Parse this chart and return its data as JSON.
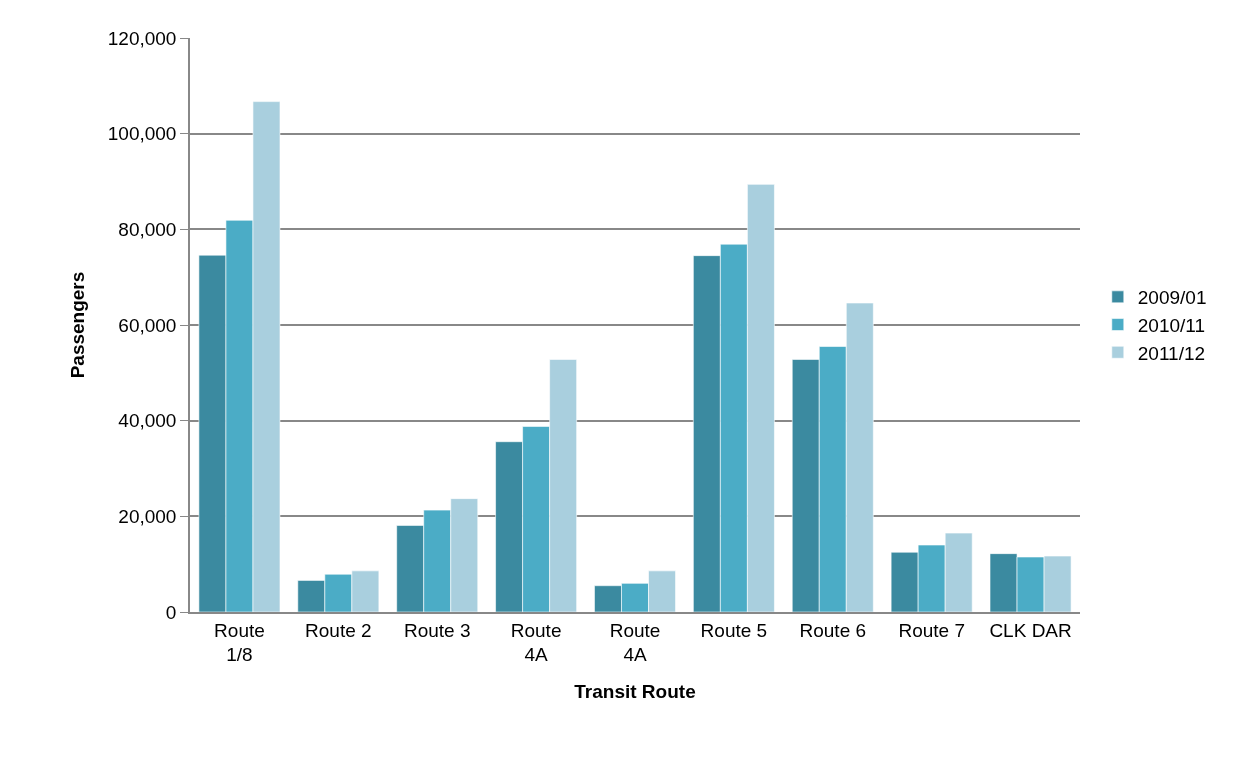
{
  "chart_data": {
    "type": "bar",
    "xlabel": "Transit Route",
    "ylabel": "Passengers",
    "categories": [
      "Route\n1/8",
      "Route 2",
      "Route 3",
      "Route\n4A",
      "Route\n4A",
      "Route 5",
      "Route 6",
      "Route 7",
      "CLK DAR"
    ],
    "series": [
      {
        "name": "2009/01",
        "color": "#3b8aa0",
        "values": [
          74600,
          6600,
          18100,
          35600,
          5500,
          74500,
          52800,
          12500,
          12200
        ]
      },
      {
        "name": "2010/11",
        "color": "#4bacc6",
        "values": [
          81900,
          7900,
          21300,
          38800,
          6000,
          76900,
          55500,
          14000,
          11500
        ]
      },
      {
        "name": "2011/12",
        "color": "#a9cfde",
        "values": [
          106700,
          8600,
          23700,
          52800,
          8600,
          89400,
          64600,
          16500,
          11700
        ]
      }
    ],
    "ylim": [
      0,
      120000
    ],
    "yticks": [
      {
        "value": 0,
        "label": "0"
      },
      {
        "value": 20000,
        "label": "20,000"
      },
      {
        "value": 40000,
        "label": "40,000"
      },
      {
        "value": 60000,
        "label": "60,000"
      },
      {
        "value": 80000,
        "label": "80,000"
      },
      {
        "value": 100000,
        "label": "100,000"
      },
      {
        "value": 120000,
        "label": "120,000"
      }
    ],
    "grid": "y",
    "legend": "right"
  }
}
